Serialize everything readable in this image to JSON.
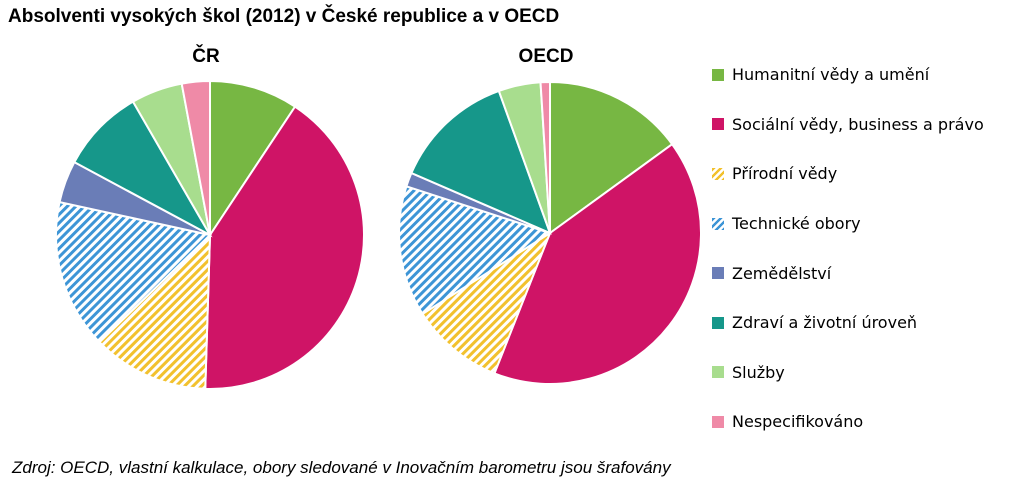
{
  "title": "Absolventi vysokých škol (2012) v České republice a v OECD",
  "source_note": "Zdroj: OECD, vlastní kalkulace, obory sledované v Inovačním barometru jsou šrafovány",
  "chart_data": [
    {
      "type": "pie",
      "title": "ČR",
      "categories": [
        "Humanitní vědy a umění",
        "Sociální vědy, business a právo",
        "Přírodní vědy",
        "Technické obory",
        "Zemědělství",
        "Zdraví a životní úroveň",
        "Služby",
        "Nespecifikováno"
      ],
      "values": [
        9.5,
        42,
        12.5,
        16,
        4.5,
        9,
        5.5,
        3
      ],
      "hatched": [
        false,
        false,
        true,
        true,
        false,
        false,
        false,
        false
      ]
    },
    {
      "type": "pie",
      "title": "OECD",
      "categories": [
        "Humanitní vědy a umění",
        "Sociální vědy, business a právo",
        "Přírodní vědy",
        "Technické obory",
        "Zemědělství",
        "Zdraví a životní úroveň",
        "Služby",
        "Nespecifikováno"
      ],
      "values": [
        15,
        41,
        10,
        14,
        1.5,
        13,
        4.5,
        1
      ],
      "hatched": [
        false,
        false,
        true,
        true,
        false,
        false,
        false,
        false
      ]
    }
  ],
  "legend": {
    "placement": "right",
    "items": [
      {
        "label": "Humanitní vědy a umění",
        "color": "#77b743",
        "hatched": false
      },
      {
        "label": "Sociální vědy, business a právo",
        "color": "#cf1466",
        "hatched": false
      },
      {
        "label": "Přírodní vědy",
        "color": "#f2c12e",
        "hatched": true
      },
      {
        "label": "Technické obory",
        "color": "#3d95d6",
        "hatched": true
      },
      {
        "label": "Zemědělství",
        "color": "#6a7db7",
        "hatched": false
      },
      {
        "label": "Zdraví a životní úroveň",
        "color": "#16978a",
        "hatched": false
      },
      {
        "label": "Služby",
        "color": "#a8dd8e",
        "hatched": false
      },
      {
        "label": "Nespecifikováno",
        "color": "#ef8aa7",
        "hatched": false
      }
    ]
  }
}
